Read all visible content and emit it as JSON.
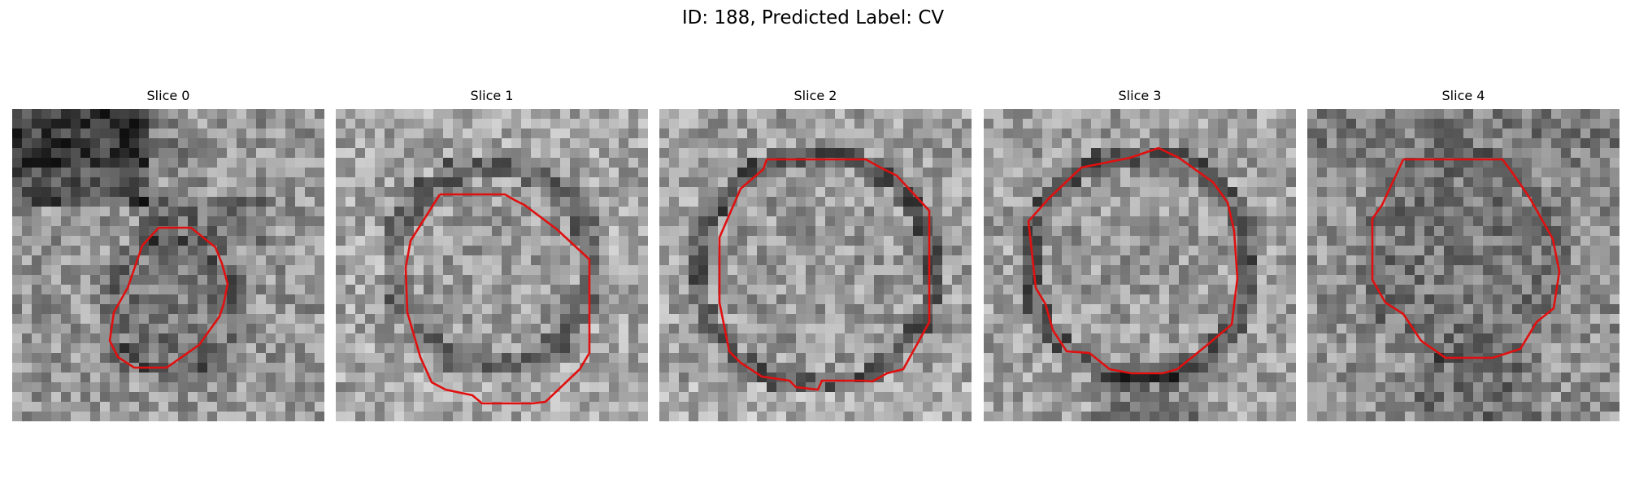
{
  "figure": {
    "title": "ID: 188, Predicted Label: CV"
  },
  "panels": [
    {
      "title": "Slice 0"
    },
    {
      "title": "Slice 1"
    },
    {
      "title": "Slice 2"
    },
    {
      "title": "Slice 3"
    },
    {
      "title": "Slice 4"
    }
  ],
  "colors": {
    "contour": "#e01010",
    "background": "#ffffff"
  }
}
